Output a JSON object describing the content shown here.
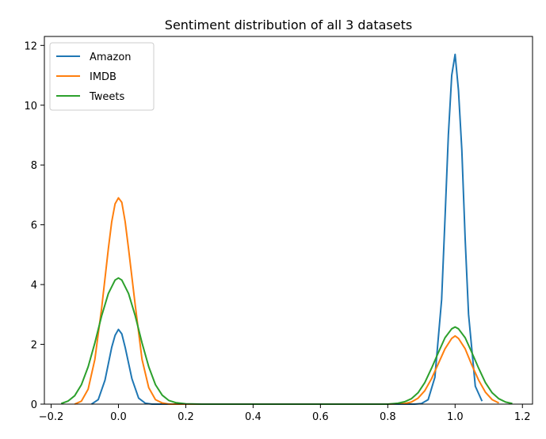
{
  "chart_data": {
    "type": "line",
    "title": "Sentiment distribution of all 3 datasets",
    "xlabel": "",
    "ylabel": "",
    "xlim": [
      -0.22,
      1.23
    ],
    "ylim": [
      0,
      12.3
    ],
    "xticks": [
      -0.2,
      0.0,
      0.2,
      0.4,
      0.6,
      0.8,
      1.0,
      1.2
    ],
    "xtick_labels": [
      "−0.2",
      "0.0",
      "0.2",
      "0.4",
      "0.6",
      "0.8",
      "1.0",
      "1.2"
    ],
    "yticks": [
      0,
      2,
      4,
      6,
      8,
      10,
      12
    ],
    "ytick_labels": [
      "0",
      "2",
      "4",
      "6",
      "8",
      "10",
      "12"
    ],
    "grid": false,
    "legend_position": "top-left",
    "series": [
      {
        "name": "Amazon",
        "color": "#1f77b4",
        "x": [
          -0.08,
          -0.06,
          -0.04,
          -0.02,
          -0.01,
          0.0,
          0.01,
          0.02,
          0.04,
          0.06,
          0.08,
          0.1,
          0.12,
          0.3,
          0.5,
          0.7,
          0.88,
          0.9,
          0.92,
          0.94,
          0.96,
          0.97,
          0.98,
          0.99,
          1.0,
          1.01,
          1.02,
          1.03,
          1.04,
          1.06,
          1.08
        ],
        "y": [
          0.0,
          0.15,
          0.8,
          1.9,
          2.3,
          2.5,
          2.35,
          1.9,
          0.85,
          0.2,
          0.03,
          0.0,
          0.0,
          0.0,
          0.0,
          0.0,
          0.0,
          0.02,
          0.15,
          0.9,
          3.5,
          6.2,
          9.0,
          11.0,
          11.7,
          10.5,
          8.5,
          5.5,
          3.0,
          0.6,
          0.1
        ]
      },
      {
        "name": "IMDB",
        "color": "#ff7f0e",
        "x": [
          -0.13,
          -0.11,
          -0.09,
          -0.07,
          -0.05,
          -0.03,
          -0.02,
          -0.01,
          0.0,
          0.01,
          0.02,
          0.03,
          0.05,
          0.07,
          0.09,
          0.11,
          0.13,
          0.15,
          0.2,
          0.4,
          0.6,
          0.8,
          0.85,
          0.87,
          0.89,
          0.91,
          0.93,
          0.95,
          0.97,
          0.99,
          1.0,
          1.01,
          1.03,
          1.05,
          1.07,
          1.09,
          1.11,
          1.13
        ],
        "y": [
          0.0,
          0.1,
          0.5,
          1.5,
          3.2,
          5.2,
          6.1,
          6.7,
          6.9,
          6.75,
          6.1,
          5.2,
          3.3,
          1.5,
          0.55,
          0.15,
          0.04,
          0.0,
          0.0,
          0.0,
          0.0,
          0.0,
          0.02,
          0.07,
          0.2,
          0.45,
          0.85,
          1.35,
          1.85,
          2.2,
          2.28,
          2.2,
          1.85,
          1.3,
          0.8,
          0.4,
          0.15,
          0.04
        ]
      },
      {
        "name": "Tweets",
        "color": "#2ca02c",
        "x": [
          -0.17,
          -0.15,
          -0.13,
          -0.11,
          -0.09,
          -0.07,
          -0.05,
          -0.03,
          -0.01,
          0.0,
          0.01,
          0.03,
          0.05,
          0.07,
          0.09,
          0.11,
          0.13,
          0.15,
          0.17,
          0.2,
          0.25,
          0.4,
          0.6,
          0.8,
          0.83,
          0.85,
          0.87,
          0.89,
          0.91,
          0.93,
          0.95,
          0.97,
          0.99,
          1.0,
          1.01,
          1.03,
          1.05,
          1.07,
          1.09,
          1.11,
          1.13,
          1.15,
          1.17
        ],
        "y": [
          0.02,
          0.1,
          0.28,
          0.65,
          1.25,
          2.05,
          2.95,
          3.7,
          4.15,
          4.22,
          4.15,
          3.7,
          2.95,
          2.05,
          1.25,
          0.65,
          0.3,
          0.12,
          0.05,
          0.01,
          0.0,
          0.0,
          0.0,
          0.0,
          0.03,
          0.08,
          0.18,
          0.38,
          0.72,
          1.2,
          1.72,
          2.22,
          2.52,
          2.58,
          2.52,
          2.22,
          1.72,
          1.2,
          0.72,
          0.38,
          0.18,
          0.07,
          0.02
        ]
      }
    ]
  }
}
